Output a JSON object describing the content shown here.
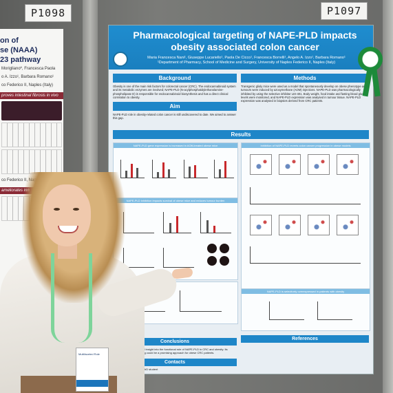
{
  "labels": {
    "left_board": "P1098",
    "right_board": "P1097"
  },
  "left_poster": {
    "title_lines": [
      "on of",
      "se (NAAA)",
      "23 pathway"
    ],
    "authors": "Moriglianoº, Francesca Paola",
    "authors2": "o A. Izzo¹, Barbara Romano¹",
    "affil": "co Federico II, Naples (Italy)",
    "section1": "proves intestinal fibrosis in vivo",
    "affil2": "co Federico II, Naples (Italy)",
    "section2": "ameliorates inn"
  },
  "poster": {
    "title_line1": "Pharmacological targeting of NAPE-PLD impacts",
    "title_line2": "obesity associated colon cancer",
    "authors": "Maria Francesca Nani¹, Giuseppe Lucariello¹, Paola De Cicco¹, Francesca Borrelli¹, Angelo A. Izzo¹, Barbara Romano¹",
    "affiliation": "¹Department of Pharmacy, School of Medicine and Surgery, University of Naples Federico II, Naples (Italy)",
    "background_head": "Background",
    "background_text": "Obesity is one of the main risk factors for colorectal cancer (CRC). The endocannabinoid system and its metabolic enzymes are involved; NAPE-PLD (N-acylphosphatidylethanolamine-phospholipase D) is responsible for endocannabinoid biosynthesis and has a direct clinical correlation to obesity.",
    "aim_head": "Aim",
    "aim_text": "NAPE-PLD role in obesity-related colon cancer is still undiscovered to date. We aimed to answer this gap.",
    "methods_head": "Methods",
    "methods_text": "Transgenic glioly mice were used as a model that spontaneously develop on obese phenotype and tumours were induced by azoxymethane (AOM) injections. NAPE-PLD was pharmacologically inhibited by using the selective inhibitor LEI-401. Body weight, food intake and fasting blood glucose levels were monitored, and NAPE-PLD expression was analysed in tumour tissue. NAPE-PLD expression was analysed in biopsies derived from CRC patients.",
    "results_head": "Results",
    "panel1_cap": "NAPE-PLD gene expression is increased in AOM-treated obese mice",
    "panel2_cap": "NAPE-PLD inhibition impacts survival of obese mice and reduces tumour burden",
    "panel3_cap": "Inhibition of NAPE-PLD reverts colon cancer progression in obese models",
    "panel4_cap": "NAPE-PLD is selectively overexpressed in patients with obesity",
    "conclusions_head": "Conclusions",
    "conclusions_text": "Our results provide novel insight into the functional role of NAPE-PLD in CRC and obesity. Its pharmacological targeting could be a promising approach for obese CRC patients.",
    "contacts_head": "Contacts",
    "contacts_text": "Maria Francesca Nani, PhD student",
    "references_head": "References"
  },
  "badge": {
    "text": "Multifaceted Role"
  }
}
